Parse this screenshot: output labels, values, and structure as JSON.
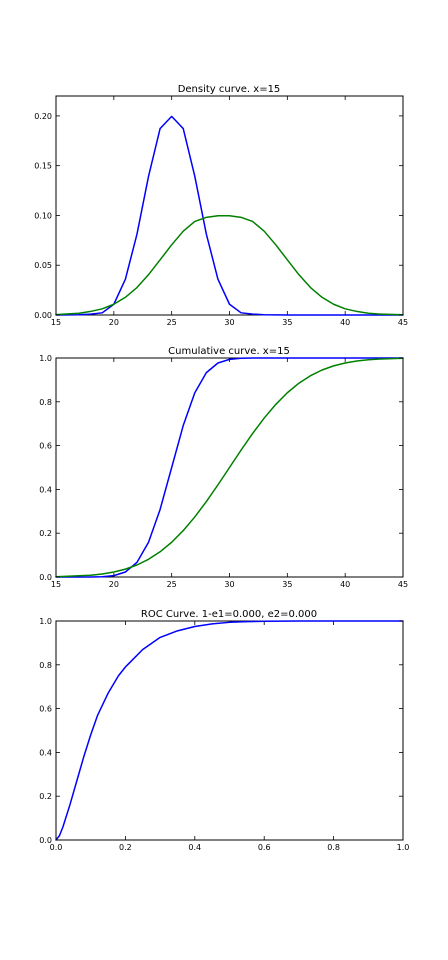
{
  "chart_data": [
    {
      "type": "line",
      "title": "Density curve. x=15",
      "xlim": [
        15,
        45
      ],
      "ylim": [
        0,
        0.22
      ],
      "xticks": [
        15,
        20,
        25,
        30,
        35,
        40,
        45
      ],
      "yticks": [
        0.0,
        0.05,
        0.1,
        0.15,
        0.2
      ],
      "xtick_labels": [
        "15",
        "20",
        "25",
        "30",
        "35",
        "40",
        "45"
      ],
      "ytick_labels": [
        "0.00",
        "0.05",
        "0.10",
        "0.15",
        "0.20"
      ],
      "grid": false,
      "legend": "none",
      "series": [
        {
          "color": "#0000ff",
          "x": [
            15,
            17,
            18,
            19,
            20,
            21,
            22,
            23,
            24,
            25,
            26,
            27,
            28,
            29,
            30,
            31,
            32,
            33,
            35,
            40,
            45
          ],
          "y": [
            0.0,
            0.0003,
            0.0009,
            0.0022,
            0.0108,
            0.036,
            0.0812,
            0.1393,
            0.1873,
            0.1995,
            0.1873,
            0.1393,
            0.0812,
            0.036,
            0.0108,
            0.0022,
            0.0009,
            0.0003,
            0.0,
            0.0,
            0.0
          ]
        },
        {
          "color": "#008000",
          "x": [
            15,
            17,
            18,
            19,
            20,
            21,
            22,
            23,
            24,
            25,
            26,
            27,
            28,
            29,
            30,
            31,
            32,
            33,
            34,
            35,
            36,
            37,
            38,
            39,
            40,
            41,
            42,
            43,
            45
          ],
          "y": [
            0.0004,
            0.0018,
            0.0036,
            0.0062,
            0.0108,
            0.0178,
            0.0276,
            0.0405,
            0.0554,
            0.0705,
            0.0842,
            0.094,
            0.0981,
            0.0997,
            0.0997,
            0.0981,
            0.094,
            0.0842,
            0.0705,
            0.0554,
            0.0405,
            0.0276,
            0.0178,
            0.0108,
            0.0062,
            0.0036,
            0.0018,
            0.0009,
            0.0002
          ]
        }
      ]
    },
    {
      "type": "line",
      "title": "Cumulative curve. x=15",
      "xlim": [
        15,
        45
      ],
      "ylim": [
        0,
        1.0
      ],
      "xticks": [
        15,
        20,
        25,
        30,
        35,
        40,
        45
      ],
      "yticks": [
        0.0,
        0.2,
        0.4,
        0.6,
        0.8,
        1.0
      ],
      "xtick_labels": [
        "15",
        "20",
        "25",
        "30",
        "35",
        "40",
        "45"
      ],
      "ytick_labels": [
        "0.0",
        "0.2",
        "0.4",
        "0.6",
        "0.8",
        "1.0"
      ],
      "grid": false,
      "legend": "none",
      "series": [
        {
          "color": "#0000ff",
          "x": [
            15,
            18,
            19,
            20,
            21,
            22,
            23,
            24,
            25,
            26,
            27,
            28,
            29,
            30,
            31,
            32,
            45
          ],
          "y": [
            0.0,
            0.0002,
            0.0013,
            0.0062,
            0.0228,
            0.0668,
            0.1587,
            0.3085,
            0.5,
            0.6915,
            0.8413,
            0.9332,
            0.9772,
            0.9938,
            0.9987,
            0.9998,
            1.0
          ]
        },
        {
          "color": "#008000",
          "x": [
            15,
            18,
            19,
            20,
            21,
            22,
            23,
            24,
            25,
            26,
            27,
            28,
            29,
            30,
            31,
            32,
            33,
            34,
            35,
            36,
            37,
            38,
            39,
            40,
            41,
            42,
            43,
            45
          ],
          "y": [
            0.0013,
            0.0082,
            0.0139,
            0.0228,
            0.0359,
            0.0548,
            0.0808,
            0.1151,
            0.1587,
            0.2119,
            0.2743,
            0.3446,
            0.4207,
            0.5,
            0.5793,
            0.6554,
            0.7257,
            0.7881,
            0.8413,
            0.8849,
            0.9192,
            0.9452,
            0.9641,
            0.9772,
            0.9861,
            0.9918,
            0.9953,
            0.9987
          ]
        }
      ]
    },
    {
      "type": "line",
      "title": "ROC Curve. 1-e1=0.000, e2=0.000",
      "xlim": [
        0,
        1.0
      ],
      "ylim": [
        0,
        1.0
      ],
      "xticks": [
        0.0,
        0.2,
        0.4,
        0.6,
        0.8,
        1.0
      ],
      "yticks": [
        0.0,
        0.2,
        0.4,
        0.6,
        0.8,
        1.0
      ],
      "xtick_labels": [
        "0.0",
        "0.2",
        "0.4",
        "0.6",
        "0.8",
        "1.0"
      ],
      "ytick_labels": [
        "0.0",
        "0.2",
        "0.4",
        "0.6",
        "0.8",
        "1.0"
      ],
      "grid": false,
      "legend": "none",
      "series": [
        {
          "color": "#0000ff",
          "x": [
            0.0,
            0.01,
            0.02,
            0.04,
            0.06,
            0.08,
            0.1,
            0.12,
            0.15,
            0.18,
            0.2,
            0.25,
            0.3,
            0.35,
            0.4,
            0.45,
            0.5,
            0.55,
            0.6,
            0.7,
            0.8,
            1.0
          ],
          "y": [
            0.0,
            0.02,
            0.06,
            0.16,
            0.27,
            0.38,
            0.48,
            0.57,
            0.67,
            0.75,
            0.79,
            0.87,
            0.925,
            0.955,
            0.975,
            0.987,
            0.994,
            0.997,
            0.999,
            1.0,
            1.0,
            1.0
          ]
        }
      ]
    }
  ]
}
